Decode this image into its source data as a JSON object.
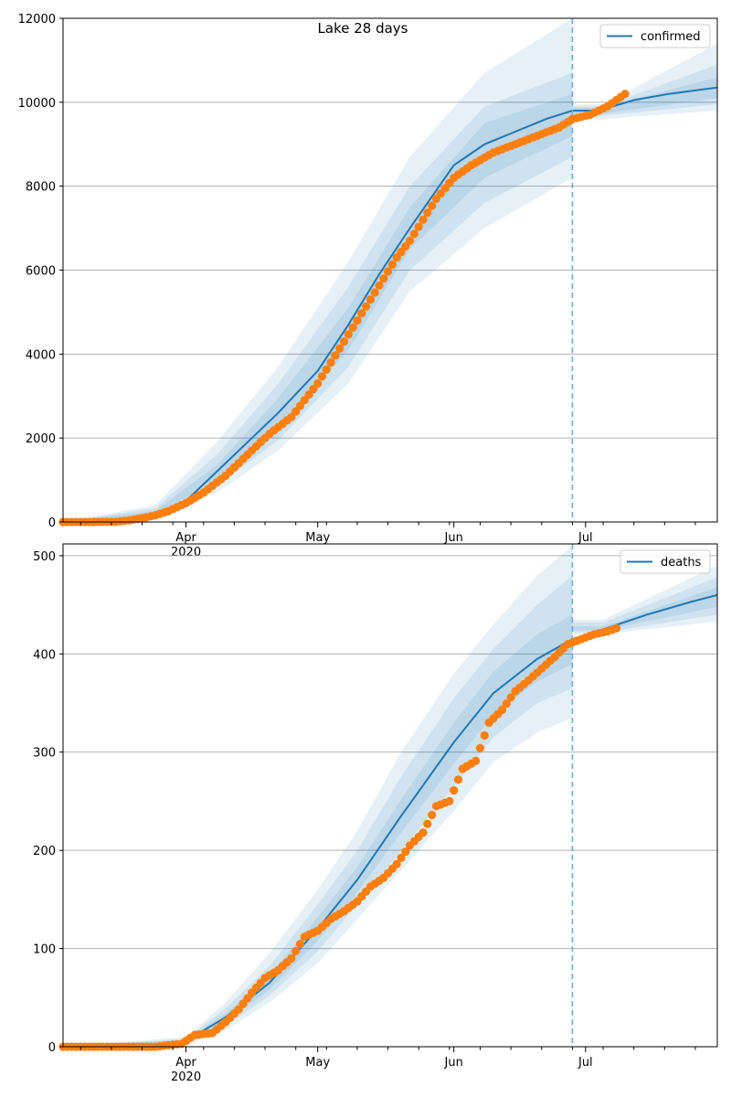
{
  "figure": {
    "title": "Lake 28 days"
  },
  "chart_data": [
    {
      "type": "line",
      "name": "confirmed-panel",
      "title": "Lake 28 days",
      "legend": [
        "confirmed"
      ],
      "legend_position": "top-right",
      "grid": "horizontal",
      "xlim": [
        "2020-03-04",
        "2020-07-31"
      ],
      "ylim": [
        0,
        12000
      ],
      "yticks": [
        0,
        2000,
        4000,
        6000,
        8000,
        10000,
        12000
      ],
      "xticks_major": [
        {
          "date": "2020-04-01",
          "label": "Apr",
          "sublabel": "2020"
        },
        {
          "date": "2020-05-01",
          "label": "May"
        },
        {
          "date": "2020-06-01",
          "label": "Jun"
        },
        {
          "date": "2020-07-01",
          "label": "Jul"
        }
      ],
      "forecast_start": "2020-06-28",
      "band_color": "#1f77b4",
      "line_color": "#1f77b4",
      "observed_color": "#ff7f0e",
      "model_line": [
        [
          "2020-03-04",
          0
        ],
        [
          "2020-03-20",
          60
        ],
        [
          "2020-03-25",
          200
        ],
        [
          "2020-04-01",
          500
        ],
        [
          "2020-04-08",
          1200
        ],
        [
          "2020-04-15",
          1900
        ],
        [
          "2020-04-22",
          2600
        ],
        [
          "2020-05-01",
          3600
        ],
        [
          "2020-05-08",
          4700
        ],
        [
          "2020-05-15",
          5900
        ],
        [
          "2020-05-22",
          7000
        ],
        [
          "2020-06-01",
          8500
        ],
        [
          "2020-06-08",
          9000
        ],
        [
          "2020-06-15",
          9300
        ],
        [
          "2020-06-22",
          9600
        ],
        [
          "2020-06-28",
          9800
        ],
        [
          "2020-07-04",
          9800
        ],
        [
          "2020-07-12",
          10050
        ],
        [
          "2020-07-20",
          10200
        ],
        [
          "2020-07-31",
          10350
        ]
      ],
      "bands": [
        {
          "lower": [
            [
              "2020-03-04",
              0
            ],
            [
              "2020-03-25",
              100
            ],
            [
              "2020-04-08",
              700
            ],
            [
              "2020-04-22",
              1700
            ],
            [
              "2020-05-08",
              3300
            ],
            [
              "2020-05-22",
              5500
            ],
            [
              "2020-06-08",
              7000
            ],
            [
              "2020-06-28",
              8200
            ],
            [
              "2020-07-05",
              9600
            ],
            [
              "2020-07-31",
              9800
            ]
          ],
          "upper": [
            [
              "2020-03-04",
              0
            ],
            [
              "2020-03-25",
              400
            ],
            [
              "2020-04-08",
              1900
            ],
            [
              "2020-04-22",
              3700
            ],
            [
              "2020-05-08",
              6200
            ],
            [
              "2020-05-22",
              8700
            ],
            [
              "2020-06-08",
              10700
            ],
            [
              "2020-06-28",
              12000
            ],
            [
              "2020-07-05",
              9950
            ],
            [
              "2020-07-31",
              11400
            ]
          ]
        },
        {
          "lower": [
            [
              "2020-03-04",
              0
            ],
            [
              "2020-03-25",
              140
            ],
            [
              "2020-04-08",
              850
            ],
            [
              "2020-04-22",
              1950
            ],
            [
              "2020-05-08",
              3700
            ],
            [
              "2020-05-22",
              6000
            ],
            [
              "2020-06-08",
              7600
            ],
            [
              "2020-06-28",
              8700
            ],
            [
              "2020-07-05",
              9680
            ],
            [
              "2020-07-31",
              9950
            ]
          ],
          "upper": [
            [
              "2020-03-04",
              0
            ],
            [
              "2020-03-25",
              330
            ],
            [
              "2020-04-08",
              1600
            ],
            [
              "2020-04-22",
              3300
            ],
            [
              "2020-05-08",
              5600
            ],
            [
              "2020-05-22",
              8000
            ],
            [
              "2020-06-08",
              9900
            ],
            [
              "2020-06-28",
              10700
            ],
            [
              "2020-07-05",
              9900
            ],
            [
              "2020-07-31",
              10900
            ]
          ]
        },
        {
          "lower": [
            [
              "2020-03-04",
              0
            ],
            [
              "2020-03-25",
              170
            ],
            [
              "2020-04-08",
              1000
            ],
            [
              "2020-04-22",
              2200
            ],
            [
              "2020-05-08",
              4100
            ],
            [
              "2020-05-22",
              6500
            ],
            [
              "2020-06-08",
              8200
            ],
            [
              "2020-06-28",
              9200
            ],
            [
              "2020-07-05",
              9730
            ],
            [
              "2020-07-31",
              10100
            ]
          ],
          "upper": [
            [
              "2020-03-04",
              0
            ],
            [
              "2020-03-25",
              270
            ],
            [
              "2020-04-08",
              1350
            ],
            [
              "2020-04-22",
              2950
            ],
            [
              "2020-05-08",
              5100
            ],
            [
              "2020-05-22",
              7500
            ],
            [
              "2020-06-08",
              9500
            ],
            [
              "2020-06-28",
              10200
            ],
            [
              "2020-07-05",
              9870
            ],
            [
              "2020-07-31",
              10600
            ]
          ]
        }
      ],
      "observed": [
        [
          "2020-03-04",
          0
        ],
        [
          "2020-03-10",
          0
        ],
        [
          "2020-03-16",
          5
        ],
        [
          "2020-03-19",
          40
        ],
        [
          "2020-03-22",
          90
        ],
        [
          "2020-03-25",
          160
        ],
        [
          "2020-03-28",
          260
        ],
        [
          "2020-04-01",
          450
        ],
        [
          "2020-04-05",
          700
        ],
        [
          "2020-04-10",
          1100
        ],
        [
          "2020-04-15",
          1600
        ],
        [
          "2020-04-20",
          2100
        ],
        [
          "2020-04-25",
          2500
        ],
        [
          "2020-04-28",
          2900
        ],
        [
          "2020-05-01",
          3300
        ],
        [
          "2020-05-04",
          3800
        ],
        [
          "2020-05-07",
          4300
        ],
        [
          "2020-05-10",
          4800
        ],
        [
          "2020-05-13",
          5300
        ],
        [
          "2020-05-16",
          5800
        ],
        [
          "2020-05-19",
          6300
        ],
        [
          "2020-05-22",
          6700
        ],
        [
          "2020-05-25",
          7200
        ],
        [
          "2020-05-28",
          7700
        ],
        [
          "2020-06-01",
          8200
        ],
        [
          "2020-06-05",
          8500
        ],
        [
          "2020-06-10",
          8800
        ],
        [
          "2020-06-15",
          9000
        ],
        [
          "2020-06-20",
          9200
        ],
        [
          "2020-06-25",
          9400
        ],
        [
          "2020-06-28",
          9600
        ],
        [
          "2020-07-02",
          9700
        ],
        [
          "2020-07-06",
          9900
        ],
        [
          "2020-07-10",
          10200
        ]
      ]
    },
    {
      "type": "line",
      "name": "deaths-panel",
      "legend": [
        "deaths"
      ],
      "legend_position": "top-right",
      "grid": "horizontal",
      "xlim": [
        "2020-03-04",
        "2020-07-31"
      ],
      "ylim": [
        0,
        512
      ],
      "yticks": [
        0,
        100,
        200,
        300,
        400,
        500
      ],
      "xticks_major": [
        {
          "date": "2020-04-01",
          "label": "Apr",
          "sublabel": "2020"
        },
        {
          "date": "2020-05-01",
          "label": "May"
        },
        {
          "date": "2020-06-01",
          "label": "Jun"
        },
        {
          "date": "2020-07-01",
          "label": "Jul"
        }
      ],
      "forecast_start": "2020-06-28",
      "band_color": "#1f77b4",
      "line_color": "#1f77b4",
      "observed_color": "#ff7f0e",
      "model_line": [
        [
          "2020-03-04",
          0
        ],
        [
          "2020-03-25",
          1
        ],
        [
          "2020-04-01",
          6
        ],
        [
          "2020-04-10",
          30
        ],
        [
          "2020-04-20",
          65
        ],
        [
          "2020-05-01",
          120
        ],
        [
          "2020-05-10",
          170
        ],
        [
          "2020-05-20",
          235
        ],
        [
          "2020-06-01",
          310
        ],
        [
          "2020-06-10",
          360
        ],
        [
          "2020-06-20",
          395
        ],
        [
          "2020-06-28",
          415
        ],
        [
          "2020-07-05",
          425
        ],
        [
          "2020-07-15",
          440
        ],
        [
          "2020-07-25",
          453
        ],
        [
          "2020-07-31",
          460
        ]
      ],
      "bands": [
        {
          "lower": [
            [
              "2020-03-04",
              0
            ],
            [
              "2020-04-01",
              2
            ],
            [
              "2020-04-10",
              17
            ],
            [
              "2020-04-20",
              45
            ],
            [
              "2020-05-01",
              85
            ],
            [
              "2020-05-10",
              130
            ],
            [
              "2020-05-20",
              180
            ],
            [
              "2020-06-01",
              240
            ],
            [
              "2020-06-10",
              290
            ],
            [
              "2020-06-20",
              320
            ],
            [
              "2020-06-28",
              335
            ],
            [
              "2020-07-05",
              420
            ],
            [
              "2020-07-31",
              433
            ]
          ],
          "upper": [
            [
              "2020-03-04",
              0
            ],
            [
              "2020-04-01",
              10
            ],
            [
              "2020-04-10",
              45
            ],
            [
              "2020-04-20",
              95
            ],
            [
              "2020-05-01",
              160
            ],
            [
              "2020-05-10",
              220
            ],
            [
              "2020-05-20",
              300
            ],
            [
              "2020-06-01",
              380
            ],
            [
              "2020-06-10",
              430
            ],
            [
              "2020-06-20",
              480
            ],
            [
              "2020-06-28",
              510
            ],
            [
              "2020-07-05",
              435
            ],
            [
              "2020-07-31",
              490
            ]
          ]
        },
        {
          "lower": [
            [
              "2020-03-04",
              0
            ],
            [
              "2020-04-01",
              3
            ],
            [
              "2020-04-10",
              21
            ],
            [
              "2020-04-20",
              52
            ],
            [
              "2020-05-01",
              97
            ],
            [
              "2020-05-10",
              145
            ],
            [
              "2020-05-20",
              200
            ],
            [
              "2020-06-01",
              265
            ],
            [
              "2020-06-10",
              315
            ],
            [
              "2020-06-20",
              350
            ],
            [
              "2020-06-28",
              365
            ],
            [
              "2020-07-05",
              422
            ],
            [
              "2020-07-31",
              440
            ]
          ],
          "upper": [
            [
              "2020-03-04",
              0
            ],
            [
              "2020-04-01",
              8
            ],
            [
              "2020-04-10",
              39
            ],
            [
              "2020-04-20",
              82
            ],
            [
              "2020-05-01",
              145
            ],
            [
              "2020-05-10",
              200
            ],
            [
              "2020-05-20",
              275
            ],
            [
              "2020-06-01",
              355
            ],
            [
              "2020-06-10",
              405
            ],
            [
              "2020-06-20",
              450
            ],
            [
              "2020-06-28",
              480
            ],
            [
              "2020-07-05",
              432
            ],
            [
              "2020-07-31",
              478
            ]
          ]
        },
        {
          "lower": [
            [
              "2020-03-04",
              0
            ],
            [
              "2020-04-01",
              4
            ],
            [
              "2020-04-10",
              25
            ],
            [
              "2020-04-20",
              58
            ],
            [
              "2020-05-01",
              108
            ],
            [
              "2020-05-10",
              157
            ],
            [
              "2020-05-20",
              218
            ],
            [
              "2020-06-01",
              288
            ],
            [
              "2020-06-10",
              338
            ],
            [
              "2020-06-20",
              372
            ],
            [
              "2020-06-28",
              390
            ],
            [
              "2020-07-05",
              424
            ],
            [
              "2020-07-31",
              448
            ]
          ],
          "upper": [
            [
              "2020-03-04",
              0
            ],
            [
              "2020-04-01",
              7
            ],
            [
              "2020-04-10",
              34
            ],
            [
              "2020-04-20",
              73
            ],
            [
              "2020-05-01",
              132
            ],
            [
              "2020-05-10",
              183
            ],
            [
              "2020-05-20",
              252
            ],
            [
              "2020-06-01",
              330
            ],
            [
              "2020-06-10",
              382
            ],
            [
              "2020-06-20",
              420
            ],
            [
              "2020-06-28",
              440
            ],
            [
              "2020-07-05",
              428
            ],
            [
              "2020-07-31",
              468
            ]
          ]
        }
      ],
      "observed": [
        [
          "2020-03-04",
          0
        ],
        [
          "2020-03-15",
          0
        ],
        [
          "2020-03-25",
          0
        ],
        [
          "2020-03-31",
          3
        ],
        [
          "2020-04-03",
          12
        ],
        [
          "2020-04-07",
          14
        ],
        [
          "2020-04-10",
          25
        ],
        [
          "2020-04-13",
          38
        ],
        [
          "2020-04-16",
          55
        ],
        [
          "2020-04-19",
          70
        ],
        [
          "2020-04-22",
          78
        ],
        [
          "2020-04-25",
          90
        ],
        [
          "2020-04-28",
          112
        ],
        [
          "2020-05-01",
          118
        ],
        [
          "2020-05-04",
          130
        ],
        [
          "2020-05-07",
          138
        ],
        [
          "2020-05-10",
          148
        ],
        [
          "2020-05-13",
          163
        ],
        [
          "2020-05-16",
          172
        ],
        [
          "2020-05-19",
          186
        ],
        [
          "2020-05-22",
          205
        ],
        [
          "2020-05-25",
          218
        ],
        [
          "2020-05-28",
          245
        ],
        [
          "2020-05-31",
          250
        ],
        [
          "2020-06-03",
          283
        ],
        [
          "2020-06-06",
          291
        ],
        [
          "2020-06-09",
          330
        ],
        [
          "2020-06-12",
          343
        ],
        [
          "2020-06-15",
          362
        ],
        [
          "2020-06-18",
          373
        ],
        [
          "2020-06-21",
          385
        ],
        [
          "2020-06-24",
          397
        ],
        [
          "2020-06-27",
          410
        ],
        [
          "2020-06-30",
          415
        ],
        [
          "2020-07-03",
          420
        ],
        [
          "2020-07-06",
          423
        ],
        [
          "2020-07-08",
          426
        ]
      ]
    }
  ]
}
